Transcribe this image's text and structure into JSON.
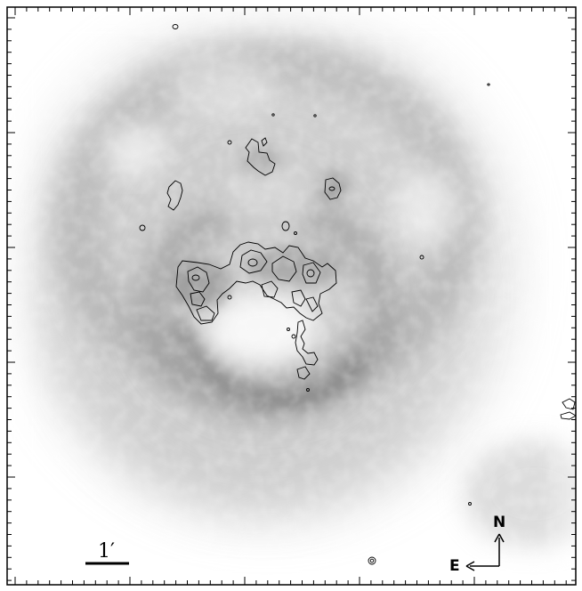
{
  "image": {
    "scale_bar_label": "1′",
    "compass_north": "N",
    "compass_east": "E",
    "colors": {
      "frame": "#000000",
      "background": "#ffffff",
      "emission": "#6e6e6e",
      "contour": "#000000"
    }
  }
}
